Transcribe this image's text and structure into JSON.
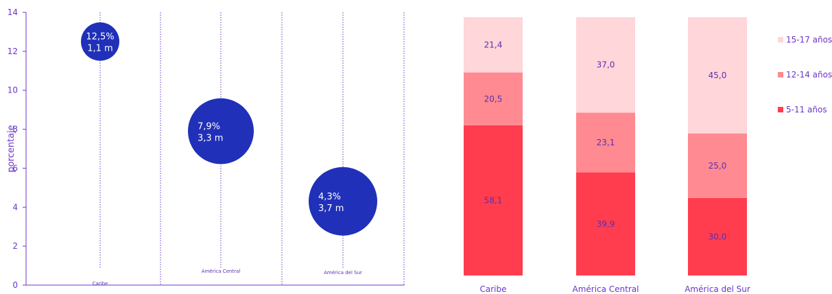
{
  "chart_data": [
    {
      "type": "scatter",
      "ylabel": "porcentaje",
      "ylim": [
        0,
        14
      ],
      "yticks": [
        0,
        2,
        4,
        6,
        8,
        10,
        12,
        14
      ],
      "categories": [
        "Caribe",
        "América Central",
        "América del Sur"
      ],
      "points": [
        {
          "category": "Caribe",
          "y": 12.5,
          "pct_label": "12,5%",
          "count_label": "1,1 m",
          "count": 1.1
        },
        {
          "category": "América Central",
          "y": 7.9,
          "pct_label": "7,9%",
          "count_label": "3,3 m",
          "count": 3.3
        },
        {
          "category": "América del Sur",
          "y": 4.3,
          "pct_label": "4,3%",
          "count_label": "3,7 m",
          "count": 3.7
        }
      ],
      "colors": {
        "bubble": "#2030b8",
        "axis": "#6b35c9"
      }
    },
    {
      "type": "bar",
      "stacked": true,
      "categories": [
        "Caribe",
        "América Central",
        "América del Sur"
      ],
      "series": [
        {
          "name": "5-11 años",
          "values": [
            58.1,
            39.9,
            30.0
          ],
          "labels": [
            "58,1",
            "39,9",
            "30,0"
          ],
          "color": "#ff3d4f"
        },
        {
          "name": "12-14 años",
          "values": [
            20.5,
            23.1,
            25.0
          ],
          "labels": [
            "20,5",
            "23,1",
            "25,0"
          ],
          "color": "#ff8a91"
        },
        {
          "name": "15-17 años",
          "values": [
            21.4,
            37.0,
            45.0
          ],
          "labels": [
            "21,4",
            "37,0",
            "45,0"
          ],
          "color": "#ffd6d9"
        }
      ],
      "legend": "right",
      "legend_order": [
        "15-17 años",
        "12-14 años",
        "5-11 años"
      ]
    }
  ]
}
